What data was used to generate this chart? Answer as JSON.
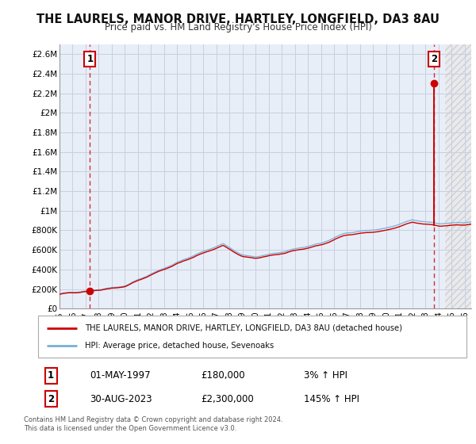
{
  "title": "THE LAURELS, MANOR DRIVE, HARTLEY, LONGFIELD, DA3 8AU",
  "subtitle": "Price paid vs. HM Land Registry's House Price Index (HPI)",
  "ylim": [
    0,
    2700000
  ],
  "yticks": [
    0,
    200000,
    400000,
    600000,
    800000,
    1000000,
    1200000,
    1400000,
    1600000,
    1800000,
    2000000,
    2200000,
    2400000,
    2600000
  ],
  "ytick_labels": [
    "£0",
    "£200K",
    "£400K",
    "£600K",
    "£800K",
    "£1M",
    "£1.2M",
    "£1.4M",
    "£1.6M",
    "£1.8M",
    "£2M",
    "£2.2M",
    "£2.4M",
    "£2.6M"
  ],
  "xlim_start": 1995.0,
  "xlim_end": 2026.5,
  "xticks": [
    1995,
    1996,
    1997,
    1998,
    1999,
    2000,
    2001,
    2002,
    2003,
    2004,
    2005,
    2006,
    2007,
    2008,
    2009,
    2010,
    2011,
    2012,
    2013,
    2014,
    2015,
    2016,
    2017,
    2018,
    2019,
    2020,
    2021,
    2022,
    2023,
    2024,
    2025,
    2026
  ],
  "sale1_x": 1997.33,
  "sale1_y": 180000,
  "sale1_label": "1",
  "sale1_date": "01-MAY-1997",
  "sale1_price": "£180,000",
  "sale1_hpi": "3% ↑ HPI",
  "sale2_x": 2023.66,
  "sale2_y": 2300000,
  "sale2_label": "2",
  "sale2_date": "30-AUG-2023",
  "sale2_price": "£2,300,000",
  "sale2_hpi": "145% ↑ HPI",
  "legend_line1": "THE LAURELS, MANOR DRIVE, HARTLEY, LONGFIELD, DA3 8AU (detached house)",
  "legend_line2": "HPI: Average price, detached house, Sevenoaks",
  "footer": "Contains HM Land Registry data © Crown copyright and database right 2024.\nThis data is licensed under the Open Government Licence v3.0.",
  "line_color_red": "#cc0000",
  "line_color_blue": "#7aafd4",
  "bg_color": "#ffffff",
  "plot_bg_color": "#e8eef8",
  "grid_color": "#c8d0de",
  "hatch_region_start": 2024.5
}
